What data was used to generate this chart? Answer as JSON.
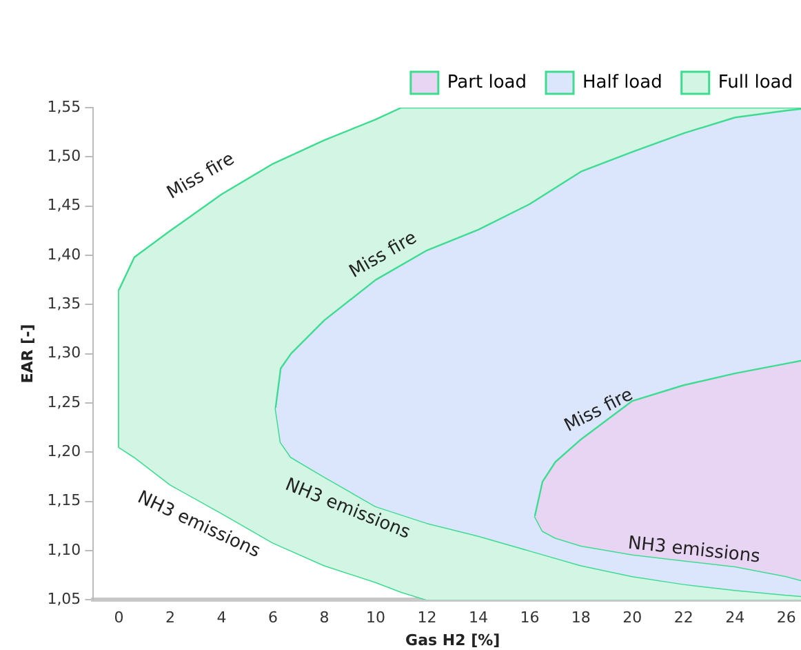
{
  "chart_data": {
    "type": "area",
    "xlabel": "Gas H2 [%]",
    "ylabel": "EAR [-]",
    "xlim": [
      -1,
      27
    ],
    "xticks": [
      0,
      2,
      4,
      6,
      8,
      10,
      12,
      14,
      16,
      18,
      20,
      22,
      24,
      26
    ],
    "ylim": [
      1.05,
      1.55
    ],
    "yticks": [
      {
        "value": 1.05,
        "label": "1,05"
      },
      {
        "value": 1.1,
        "label": "1,10"
      },
      {
        "value": 1.15,
        "label": "1,15"
      },
      {
        "value": 1.2,
        "label": "1,20"
      },
      {
        "value": 1.25,
        "label": "1,25"
      },
      {
        "value": 1.3,
        "label": "1,30"
      },
      {
        "value": 1.35,
        "label": "1,35"
      },
      {
        "value": 1.4,
        "label": "1,40"
      },
      {
        "value": 1.45,
        "label": "1,45"
      },
      {
        "value": 1.5,
        "label": "1,50"
      },
      {
        "value": 1.55,
        "label": "1,55"
      }
    ],
    "grid": false,
    "legend": "top right",
    "series": [
      {
        "name": "Part load",
        "color": "#e8d5f3",
        "x": [
          16.2,
          16.5,
          17,
          18,
          20,
          22,
          24,
          26,
          27
        ],
        "values": [
          1.135,
          1.17,
          1.19,
          1.213,
          1.252,
          1.268,
          1.28,
          1.29,
          1.295
        ]
      },
      {
        "type": "line",
        "color": "#3ddc91",
        "x": [
          16.2,
          16.5,
          17,
          18,
          20,
          22,
          24,
          26,
          27
        ],
        "values": [
          1.135,
          1.12,
          1.113,
          1.105,
          1.096,
          1.09,
          1.084,
          1.074,
          1.067
        ]
      },
      {
        "name": "Half load",
        "color": "#dbe5fc",
        "x": [
          6.1,
          6.3,
          6.7,
          8,
          10,
          12,
          14,
          16,
          18,
          20,
          22,
          24,
          26,
          27
        ],
        "values": [
          1.245,
          1.285,
          1.3,
          1.334,
          1.375,
          1.405,
          1.426,
          1.452,
          1.485,
          1.505,
          1.524,
          1.54,
          1.547,
          1.55
        ]
      },
      {
        "type": "line",
        "color": "#3ddc91",
        "x": [
          6.1,
          6.3,
          6.7,
          8,
          10,
          12,
          14,
          16,
          18,
          20,
          22,
          24,
          26,
          27
        ],
        "values": [
          1.245,
          1.21,
          1.195,
          1.175,
          1.145,
          1.128,
          1.115,
          1.1,
          1.085,
          1.074,
          1.066,
          1.06,
          1.055,
          1.053
        ]
      },
      {
        "name": "Full load",
        "color": "#d3f5e3",
        "x": [
          0,
          0.6,
          2,
          4,
          6,
          8,
          10,
          11,
          12,
          27
        ],
        "values": [
          1.365,
          1.398,
          1.425,
          1.462,
          1.493,
          1.517,
          1.538,
          1.55,
          1.55,
          1.55
        ]
      },
      {
        "type": "line",
        "color": "#3ddc91",
        "x": [
          0,
          0,
          0.6,
          2,
          4,
          6,
          8,
          10,
          11,
          12,
          27
        ],
        "values": [
          1.365,
          1.205,
          1.195,
          1.167,
          1.138,
          1.108,
          1.085,
          1.068,
          1.058,
          1.05,
          1.05
        ]
      }
    ],
    "annotations": [
      "Miss fire",
      "Miss fire",
      "Miss fire",
      "NH3 emissions",
      "NH3 emissions",
      "NH3 emissions"
    ]
  }
}
